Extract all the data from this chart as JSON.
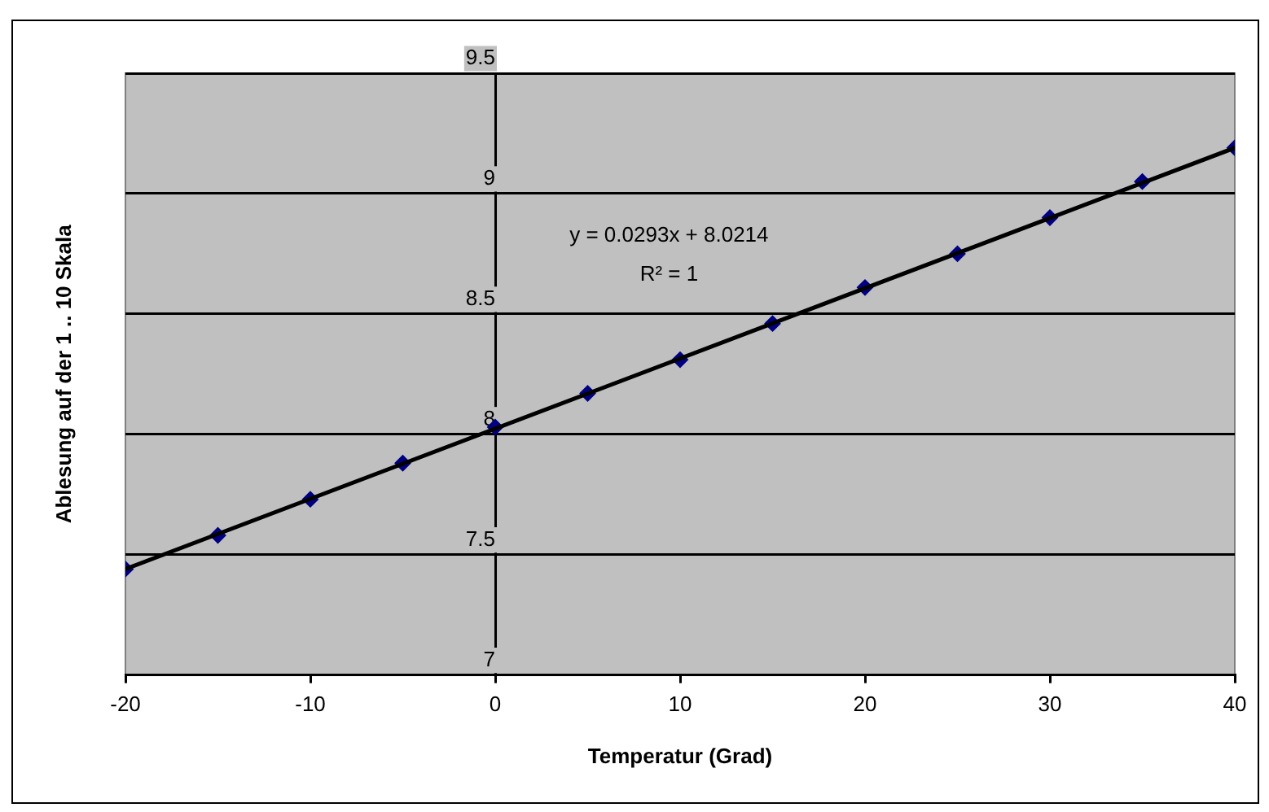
{
  "chart_data": {
    "type": "scatter",
    "xlabel": "Temperatur (Grad)",
    "ylabel": "Ablesung auf der 1 .. 10 Skala",
    "xlim": [
      -20,
      40
    ],
    "xticks": [
      -20,
      -10,
      0,
      10,
      20,
      30,
      40
    ],
    "ylim": [
      7,
      9.5
    ],
    "yticks": [
      7,
      7.5,
      8,
      8.5,
      9,
      9.5
    ],
    "grid": "y",
    "legend": false,
    "marker": "diamond",
    "annotations": [
      "y = 0.0293x + 8.0214",
      "R² = 1"
    ],
    "series": [
      {
        "type": "scatter",
        "color": "#000080",
        "x": [
          -20,
          -15,
          -10,
          -5,
          0,
          5,
          10,
          15,
          20,
          25,
          30,
          35,
          40
        ],
        "values": [
          7.44,
          7.58,
          7.73,
          7.88,
          8.03,
          8.17,
          8.31,
          8.46,
          8.61,
          8.75,
          8.9,
          9.05,
          9.19
        ]
      },
      {
        "type": "line",
        "color": "#000000",
        "marker": "none",
        "x": [
          -20,
          40
        ],
        "values": [
          7.44,
          9.19
        ]
      }
    ]
  }
}
